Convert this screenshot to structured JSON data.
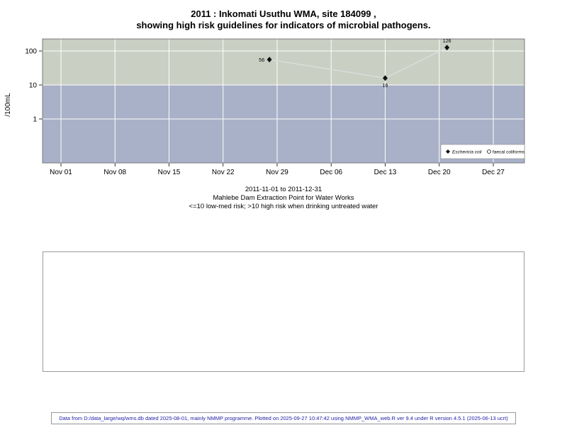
{
  "title": {
    "line1": "2011 : Inkomati Usuthu WMA, site 184099 ,",
    "line2": "showing high risk guidelines for indicators of microbial pathogens."
  },
  "chart_data": {
    "type": "scatter",
    "title": "2011 : Inkomati Usuthu WMA, site 184099 , showing high risk guidelines for indicators of microbial pathogens.",
    "ylabel": "/100mL",
    "y_scale": "log10",
    "y_ticks": [
      1,
      10,
      100
    ],
    "x_ticks": [
      "Nov 01",
      "Nov 08",
      "Nov 15",
      "Nov 22",
      "Nov 29",
      "Dec 06",
      "Dec 13",
      "Dec 20",
      "Dec 27"
    ],
    "x_tick_interval_days": 7,
    "grid": "white major gridlines",
    "bands": [
      {
        "name": "high-risk",
        "from": 10,
        "to": 230,
        "color": "#c9cfc2"
      },
      {
        "name": "low-med-risk",
        "from": 0.05,
        "to": 10,
        "color": "#a8b1c7"
      }
    ],
    "series": [
      {
        "name": "Eschericia coli",
        "marker": "diamond-filled",
        "color": "#111111",
        "line_color": "#dcdcdc",
        "points": [
          {
            "day": 27,
            "date_approx": "Nov 28",
            "value": 56,
            "label": "56",
            "label_pos": "left"
          },
          {
            "day": 42,
            "date_approx": "Dec 13",
            "value": 16,
            "label": "16",
            "label_pos": "below"
          },
          {
            "day": 50,
            "date_approx": "Dec 21",
            "value": 126,
            "label": "126",
            "label_pos": "above"
          }
        ]
      },
      {
        "name": "faecal coliforms",
        "marker": "circle-open",
        "color": "#111111",
        "points": []
      }
    ],
    "legend": {
      "position": "bottom-right-inside",
      "items": [
        {
          "label": "Eschericia coli",
          "marker": "diamond-filled",
          "italic": true
        },
        {
          "label": "faecal coliforms",
          "marker": "circle-open",
          "italic": false
        }
      ]
    }
  },
  "caption": {
    "line1": "2011-11-01 to 2011-12-31",
    "line2": "Mahlebe Dam Extraction Point for Water Works",
    "line3": "<=10 low-med risk; >10 high risk when drinking untreated water"
  },
  "footer": {
    "text": "Data from D:/data_large/wq/wms.db dated 2025-08-01, mainly NMMP programme. Plotted on 2025-09-27 10:47:42 using NMMP_WMA_web.R ver 9.4 under R version 4.5.1 (2025-06-13 ucrt)"
  }
}
